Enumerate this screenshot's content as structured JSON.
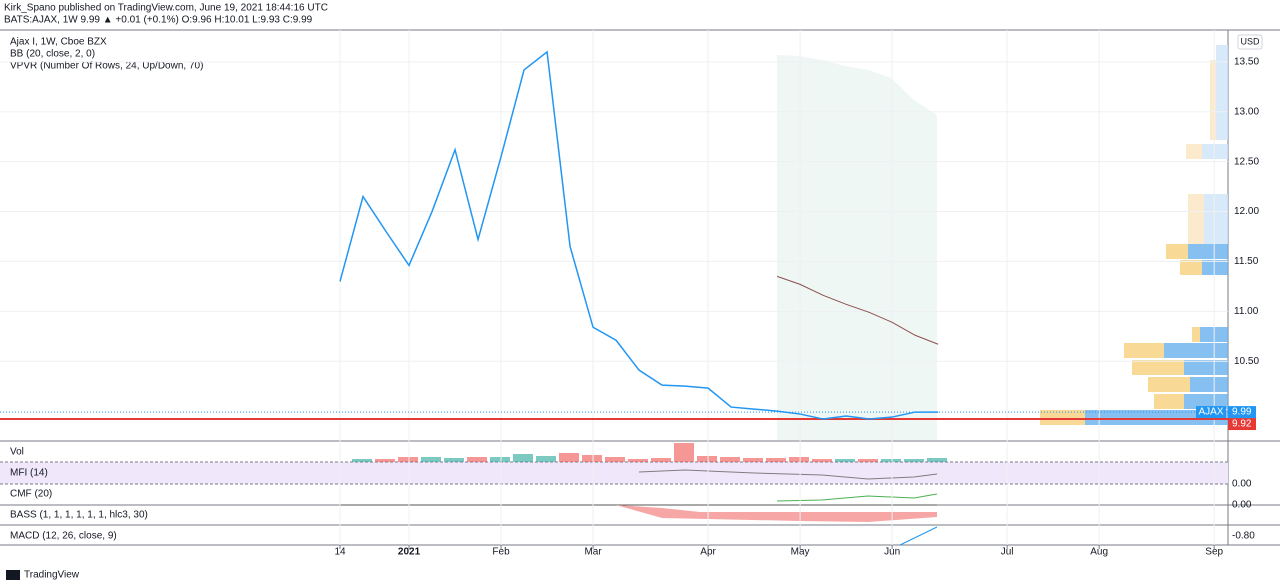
{
  "header": {
    "publisher": "Kirk_Spano published on TradingView.com, June 19, 2021 18:44:16 UTC",
    "symbol_line": "BATS:AJAX, 1W  9.99 ▲ +0.01 (+0.1%) O:9.96 H:10.01 L:9.93 C:9.99"
  },
  "legend": [
    "Ajax I, 1W, Cboe BZX",
    "BB (20, close, 2, 0)",
    "VPVR (Number Of Rows, 24, Up/Down, 70)"
  ],
  "panes": [
    {
      "title": "Vol"
    },
    {
      "title": "MFI (14)",
      "scale": "0.00"
    },
    {
      "title": "CMF (20)",
      "scale": "0.00"
    },
    {
      "title": "BASS (1, 1, 1, 1, 1, 1, hlc3, 30)"
    },
    {
      "title": "MACD (12, 26, close, 9)",
      "scale": "-0.80"
    }
  ],
  "footer": "TradingView",
  "chart_data": {
    "type": "line",
    "currency": "USD",
    "ticker": "AJAX",
    "categories": [
      null,
      null,
      null,
      null,
      null,
      null,
      null,
      null,
      null,
      null,
      null,
      null,
      null,
      null,
      null,
      null,
      null,
      null,
      null,
      null,
      null,
      null,
      null,
      null,
      null,
      null,
      null
    ],
    "series": [
      {
        "name": "AJAX",
        "color": "#2196f3",
        "values": [
          11.3,
          12.15,
          11.8,
          11.46,
          12.0,
          12.62,
          11.72,
          12.55,
          13.42,
          13.6,
          11.65,
          10.84,
          10.71,
          10.41,
          10.26,
          10.25,
          10.23,
          10.04,
          10.02,
          10.0,
          9.97,
          9.92,
          9.95,
          9.92,
          9.94,
          9.99,
          9.99
        ]
      },
      {
        "name": "BB",
        "color": "#8d4f50",
        "values": [
          null,
          null,
          null,
          null,
          null,
          null,
          null,
          null,
          null,
          null,
          null,
          null,
          null,
          null,
          null,
          null,
          null,
          null,
          null,
          11.35,
          11.27,
          11.16,
          11.07,
          10.99,
          10.89,
          10.76,
          10.67
        ]
      }
    ],
    "last_price": 9.99,
    "price_line": 9.92,
    "xlim": [
      -14.78,
      38.6
    ],
    "xticks": [
      {
        "value": 0,
        "label": "14"
      },
      {
        "value": 3,
        "label": "2021"
      },
      {
        "value": 7,
        "label": "Feb"
      },
      {
        "value": 11,
        "label": "Mar"
      },
      {
        "value": 16,
        "label": "Apr"
      },
      {
        "value": 20,
        "label": "May"
      },
      {
        "value": 24,
        "label": "Jun"
      },
      {
        "value": 29,
        "label": "Jul"
      },
      {
        "value": 33,
        "label": "Aug"
      },
      {
        "value": 38,
        "label": "Sep"
      }
    ],
    "ylim": [
      9.71,
      13.82
    ],
    "yticks": [
      {
        "value": 10.5,
        "label": "10.50"
      },
      {
        "value": 11,
        "label": "11.00"
      },
      {
        "value": 11.5,
        "label": "11.50"
      },
      {
        "value": 12,
        "label": "12.00"
      },
      {
        "value": 12.5,
        "label": "12.50"
      },
      {
        "value": 13,
        "label": "13.00"
      },
      {
        "value": 13.5,
        "label": "13.50"
      }
    ],
    "grid": true
  }
}
